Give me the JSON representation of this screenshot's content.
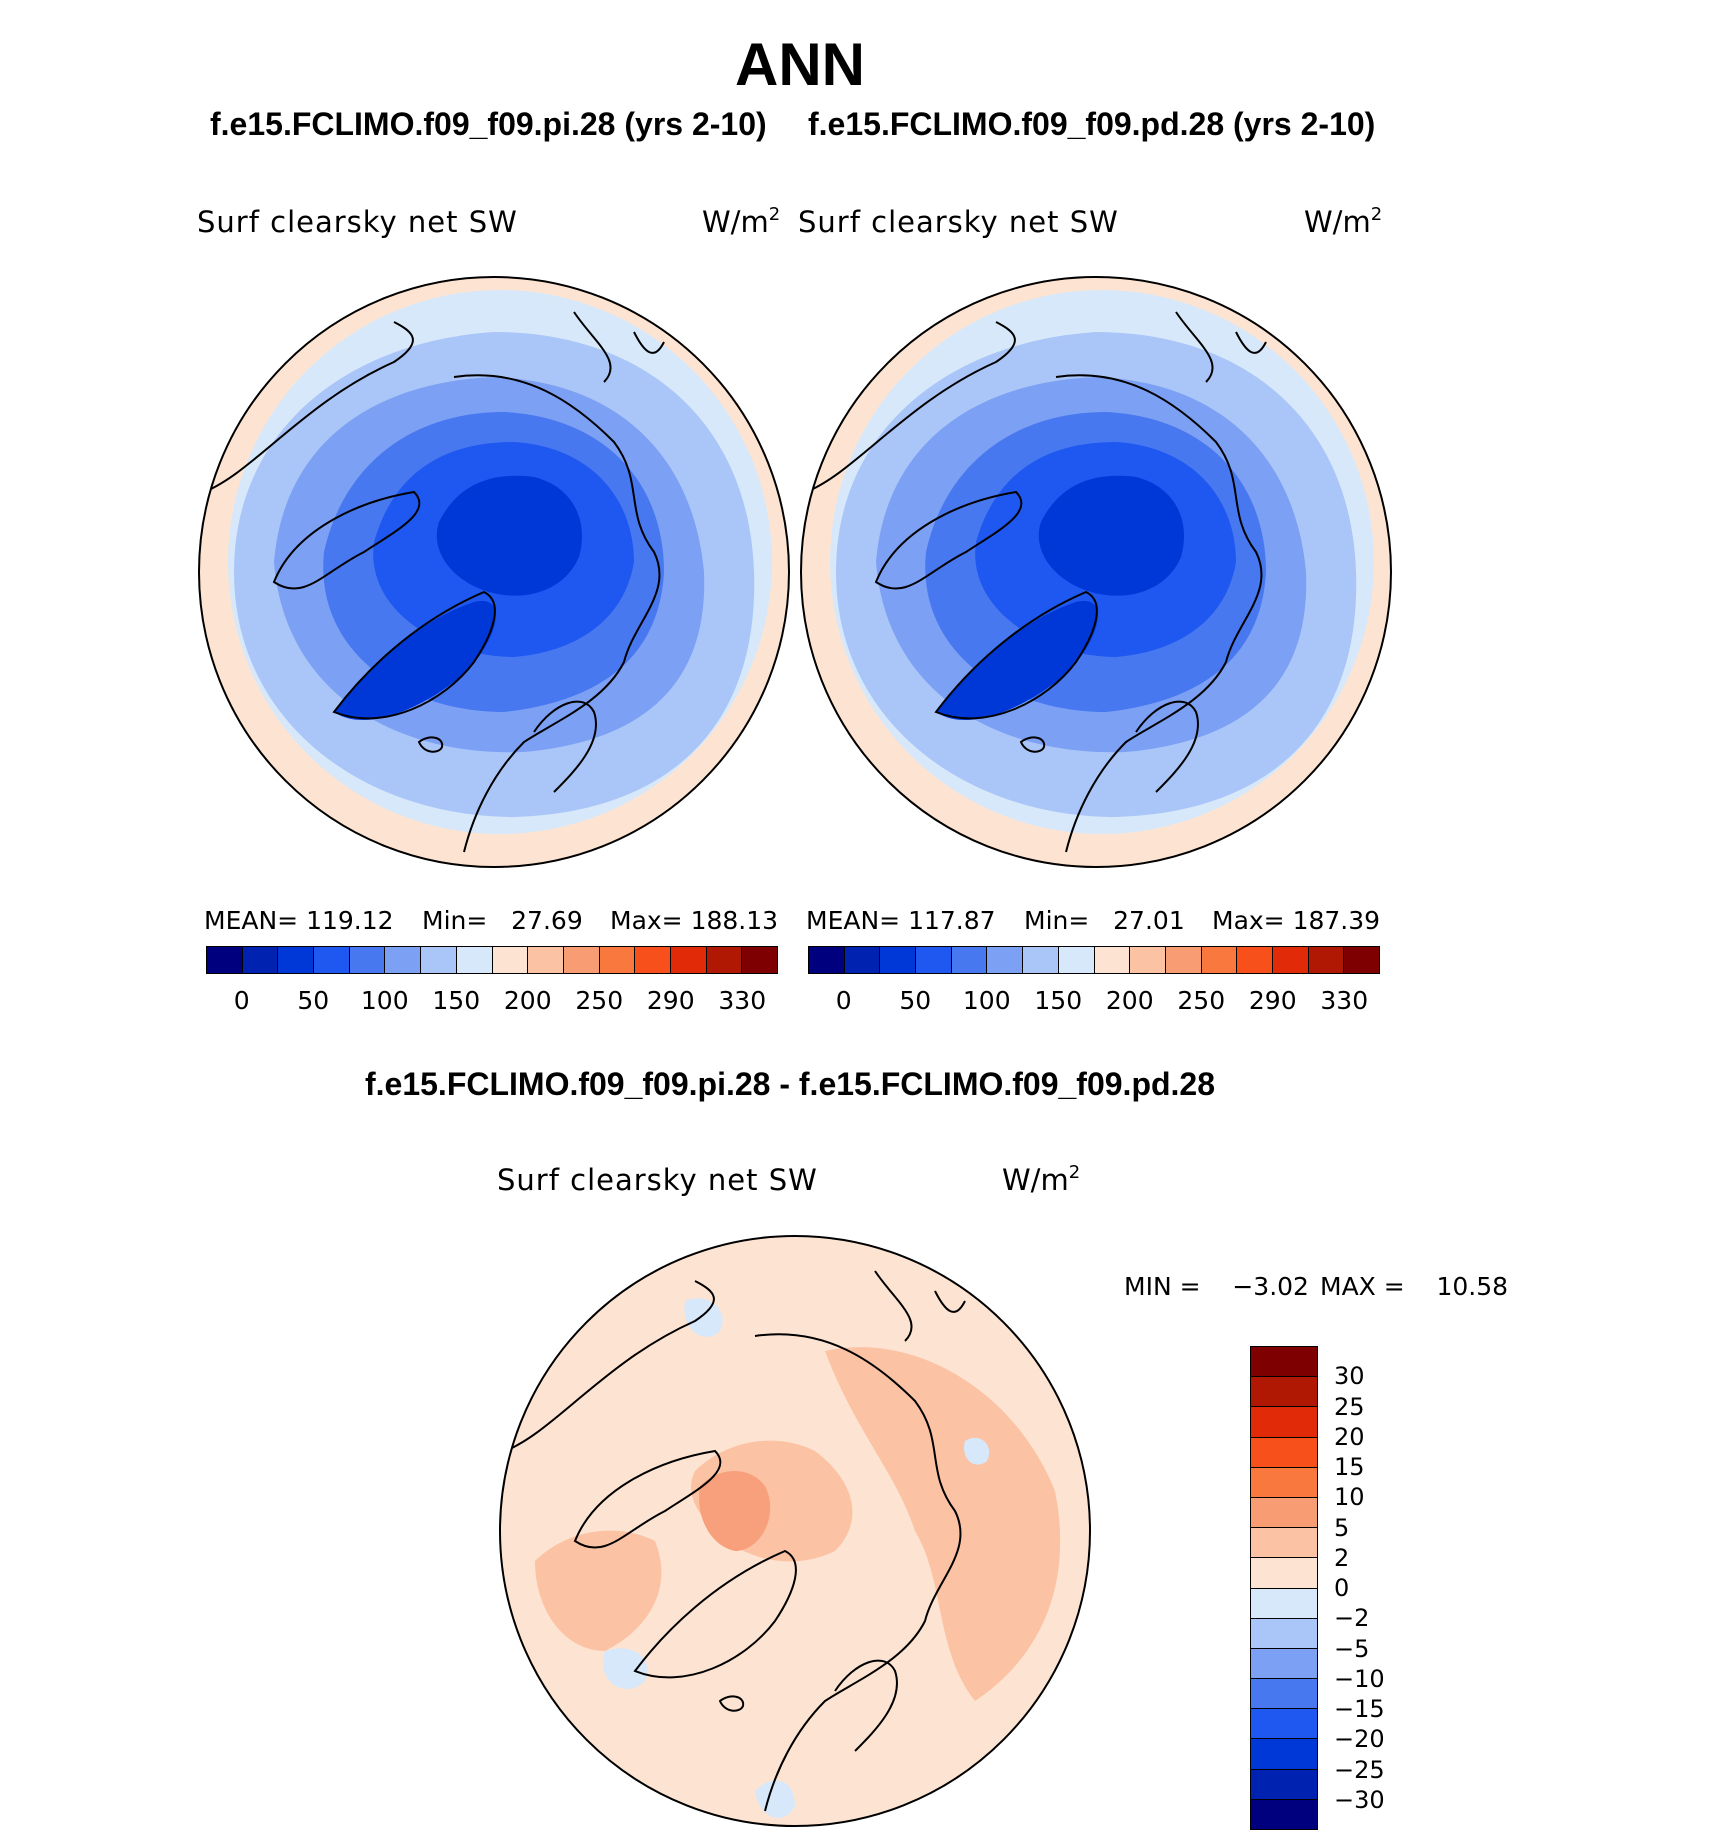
{
  "figure": {
    "season": "ANN",
    "case_left": "f.e15.FCLIMO.f09_f09.pi.28 (yrs 2-10)",
    "case_right": "f.e15.FCLIMO.f09_f09.pd.28 (yrs 2-10)",
    "diff_title": "f.e15.FCLIMO.f09_f09.pi.28 - f.e15.FCLIMO.f09_f09.pd.28"
  },
  "panels": [
    {
      "variable": "Surf clearsky net SW",
      "units": "W/m",
      "units_sup": "2",
      "mean_label": "MEAN=",
      "mean": "119.12",
      "min_label": "Min=",
      "min": "27.69",
      "max_label": "Max=",
      "max": "188.13"
    },
    {
      "variable": "Surf clearsky net SW",
      "units": "W/m",
      "units_sup": "2",
      "mean_label": "MEAN=",
      "mean": "117.87",
      "min_label": "Min=",
      "min": "27.01",
      "max_label": "Max=",
      "max": "187.39"
    }
  ],
  "diff_panel": {
    "variable": "Surf clearsky net SW",
    "units": "W/m",
    "units_sup": "2",
    "min_label": "MIN =",
    "min": "−3.02",
    "max_label": "MAX =",
    "max": "10.58"
  },
  "colorbar_main": {
    "colors": [
      "#00007f",
      "#0022b0",
      "#0038d8",
      "#1e58f0",
      "#4878f0",
      "#7ca0f4",
      "#aac6f8",
      "#d6e8fa",
      "#fde4d2",
      "#fbc2a4",
      "#f89c74",
      "#f8783e",
      "#f8501a",
      "#e02a08",
      "#b01804",
      "#7f0000"
    ],
    "tick_labels": [
      "0",
      "50",
      "100",
      "150",
      "200",
      "250",
      "290",
      "330"
    ]
  },
  "colorbar_diff": {
    "colors_top_to_bottom": [
      "#7f0000",
      "#b01804",
      "#e02a08",
      "#f8501a",
      "#f8783e",
      "#f89c74",
      "#fbc2a4",
      "#fde4d2",
      "#d6e8fa",
      "#aac6f8",
      "#7ca0f4",
      "#4878f0",
      "#1e58f0",
      "#0038d8",
      "#0022b0",
      "#00007f"
    ],
    "tick_labels": [
      "30",
      "25",
      "20",
      "15",
      "10",
      "5",
      "2",
      "0",
      "−2",
      "−5",
      "−10",
      "−15",
      "−20",
      "−25",
      "−30"
    ]
  },
  "map_colors": {
    "ocean_far": "#fde4d2",
    "c150": "#d6e8fa",
    "c125": "#aac6f8",
    "c100": "#7ca0f4",
    "c75": "#4878f0",
    "c50": "#1e58f0",
    "c25": "#0038d8",
    "diff_base": "#fde4d2",
    "diff_mid": "#fbc2a4",
    "diff_high": "#f8a07c",
    "diff_neg": "#d6e8fa"
  }
}
